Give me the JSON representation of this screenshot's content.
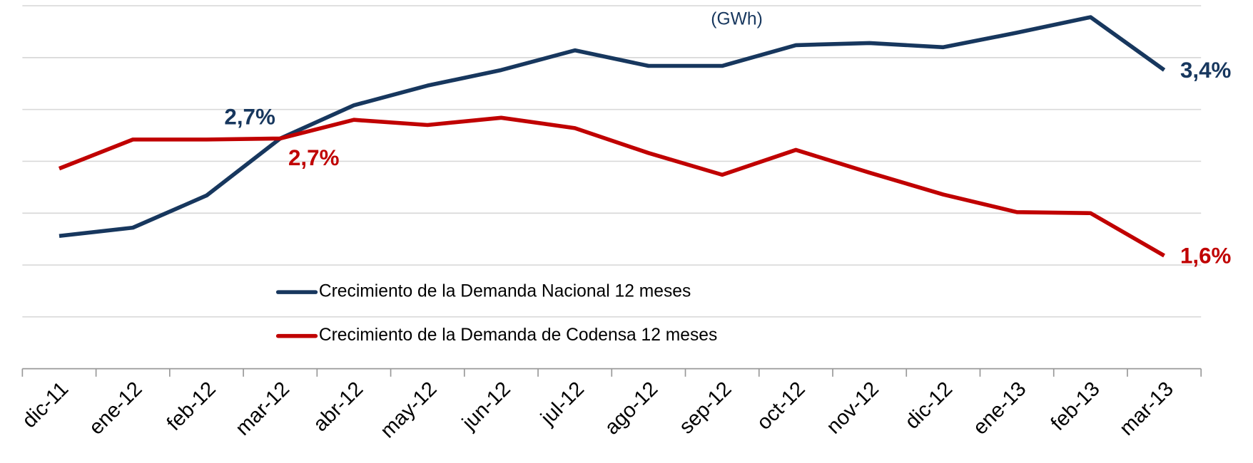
{
  "chart_data": {
    "type": "line",
    "subtitle": "(GWh)",
    "categories": [
      "dic-11",
      "ene-12",
      "feb-12",
      "mar-12",
      "abr-12",
      "may-12",
      "jun-12",
      "jul-12",
      "ago-12",
      "sep-12",
      "oct-12",
      "nov-12",
      "dic-12",
      "ene-13",
      "feb-13",
      "mar-13"
    ],
    "series": [
      {
        "name": "Crecimiento de la Demanda Nacional 12 meses",
        "color": "#17375e",
        "values": [
          1.78,
          1.86,
          2.17,
          2.72,
          3.04,
          3.23,
          3.38,
          3.57,
          3.42,
          3.42,
          3.62,
          3.64,
          3.6,
          3.74,
          3.89,
          3.38
        ],
        "value_labels": [
          null,
          null,
          null,
          "2,7%",
          null,
          null,
          null,
          null,
          null,
          null,
          null,
          null,
          null,
          null,
          null,
          "3,4%"
        ]
      },
      {
        "name": "Crecimiento de la Demanda de Codensa 12 meses",
        "color": "#c00000",
        "values": [
          2.43,
          2.71,
          2.71,
          2.72,
          2.9,
          2.85,
          2.92,
          2.82,
          2.58,
          2.37,
          2.61,
          2.39,
          2.18,
          2.01,
          2.0,
          1.59
        ],
        "value_labels": [
          null,
          null,
          null,
          "2,7%",
          null,
          null,
          null,
          null,
          null,
          null,
          null,
          null,
          null,
          null,
          null,
          "1,6%"
        ]
      }
    ],
    "ylim": [
      0.5,
      4.0
    ],
    "yticks": [
      1.0,
      1.5,
      2.0,
      2.5,
      3.0,
      3.5,
      4.0
    ],
    "grid": true
  }
}
